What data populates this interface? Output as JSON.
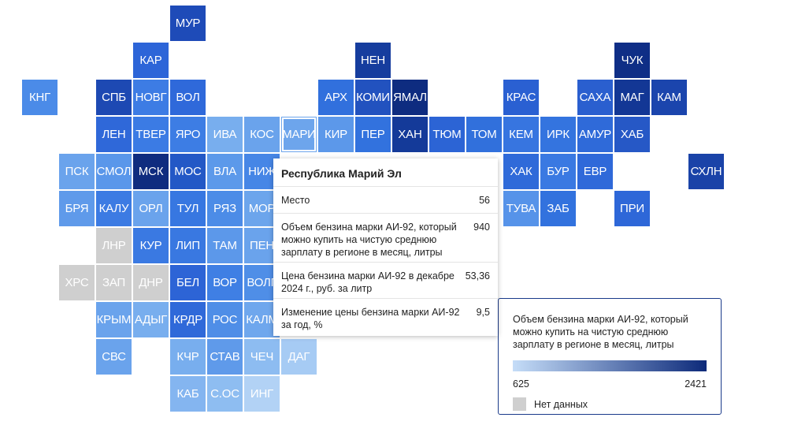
{
  "regions": [
    {
      "code": "МУР",
      "col": 4,
      "row": 0,
      "color": "#1e4bb8"
    },
    {
      "code": "КАР",
      "col": 3,
      "row": 1,
      "color": "#2d65d8"
    },
    {
      "code": "НЕН",
      "col": 9,
      "row": 1,
      "color": "#163d9e"
    },
    {
      "code": "ЧУК",
      "col": 16,
      "row": 1,
      "color": "#0f2e86"
    },
    {
      "code": "КНГ",
      "col": 0,
      "row": 2,
      "color": "#4b8be8"
    },
    {
      "code": "СПБ",
      "col": 2,
      "row": 2,
      "color": "#1d49b3"
    },
    {
      "code": "НОВГ",
      "col": 3,
      "row": 2,
      "color": "#3d7ce4"
    },
    {
      "code": "ВОЛ",
      "col": 4,
      "row": 2,
      "color": "#2f69da"
    },
    {
      "code": "АРХ",
      "col": 8,
      "row": 2,
      "color": "#3170dd"
    },
    {
      "code": "КОМИ",
      "col": 9,
      "row": 2,
      "color": "#2252bf"
    },
    {
      "code": "ЯМАЛ",
      "col": 10,
      "row": 2,
      "color": "#0e2c80"
    },
    {
      "code": "КРАС",
      "col": 13,
      "row": 2,
      "color": "#2a60d2"
    },
    {
      "code": "САХА",
      "col": 15,
      "row": 2,
      "color": "#2a5fcf"
    },
    {
      "code": "МАГ",
      "col": 16,
      "row": 2,
      "color": "#133795"
    },
    {
      "code": "КАМ",
      "col": 17,
      "row": 2,
      "color": "#1b45ad"
    },
    {
      "code": "ЛЕН",
      "col": 2,
      "row": 3,
      "color": "#2f68d9"
    },
    {
      "code": "ТВЕР",
      "col": 3,
      "row": 3,
      "color": "#3b7be4"
    },
    {
      "code": "ЯРО",
      "col": 4,
      "row": 3,
      "color": "#3d7de4"
    },
    {
      "code": "ИВА",
      "col": 5,
      "row": 3,
      "color": "#78aeee"
    },
    {
      "code": "КОС",
      "col": 6,
      "row": 3,
      "color": "#6aa3ec"
    },
    {
      "code": "МАРИ",
      "col": 7,
      "row": 3,
      "color": "#6da5ec"
    },
    {
      "code": "КИР",
      "col": 8,
      "row": 3,
      "color": "#5c98ea"
    },
    {
      "code": "ПЕР",
      "col": 9,
      "row": 3,
      "color": "#3272de"
    },
    {
      "code": "ХАН",
      "col": 10,
      "row": 3,
      "color": "#143a99"
    },
    {
      "code": "ТЮМ",
      "col": 11,
      "row": 3,
      "color": "#2c64d5"
    },
    {
      "code": "ТОМ",
      "col": 12,
      "row": 3,
      "color": "#3170dc"
    },
    {
      "code": "КЕМ",
      "col": 13,
      "row": 3,
      "color": "#3775e0"
    },
    {
      "code": "ИРК",
      "col": 14,
      "row": 3,
      "color": "#3474df"
    },
    {
      "code": "АМУР",
      "col": 15,
      "row": 3,
      "color": "#2f6ad9"
    },
    {
      "code": "ХАБ",
      "col": 16,
      "row": 3,
      "color": "#2658c6"
    },
    {
      "code": "ПСК",
      "col": 1,
      "row": 4,
      "color": "#6aa3ec"
    },
    {
      "code": "СМОЛ",
      "col": 2,
      "row": 4,
      "color": "#5a97ea"
    },
    {
      "code": "МСК",
      "col": 3,
      "row": 4,
      "color": "#0f2c7f"
    },
    {
      "code": "МОС",
      "col": 4,
      "row": 4,
      "color": "#2358c6"
    },
    {
      "code": "ВЛА",
      "col": 5,
      "row": 4,
      "color": "#5c99ea"
    },
    {
      "code": "НИЖ",
      "col": 6,
      "row": 4,
      "color": "#4686e6"
    },
    {
      "code": "ХАК",
      "col": 13,
      "row": 4,
      "color": "#2f6ad9"
    },
    {
      "code": "БУР",
      "col": 14,
      "row": 4,
      "color": "#3a79e2"
    },
    {
      "code": "ЕВР",
      "col": 15,
      "row": 4,
      "color": "#2f69d9"
    },
    {
      "code": "СХЛН",
      "col": 18,
      "row": 4,
      "color": "#1a43a8"
    },
    {
      "code": "БРЯ",
      "col": 1,
      "row": 5,
      "color": "#5f9aea"
    },
    {
      "code": "КАЛУ",
      "col": 2,
      "row": 5,
      "color": "#3c7be3"
    },
    {
      "code": "ОРЛ",
      "col": 3,
      "row": 5,
      "color": "#6aa3ec"
    },
    {
      "code": "ТУЛ",
      "col": 4,
      "row": 5,
      "color": "#3777e1"
    },
    {
      "code": "РЯЗ",
      "col": 5,
      "row": 5,
      "color": "#4c8ce7"
    },
    {
      "code": "МОР",
      "col": 6,
      "row": 5,
      "color": "#6ca5ec"
    },
    {
      "code": "ТУВА",
      "col": 13,
      "row": 5,
      "color": "#5693e9"
    },
    {
      "code": "ЗАБ",
      "col": 14,
      "row": 5,
      "color": "#3272de"
    },
    {
      "code": "ПРИ",
      "col": 16,
      "row": 5,
      "color": "#2e67d8"
    },
    {
      "code": "ЛНР",
      "col": 2,
      "row": 6,
      "color": "#cfcfcf"
    },
    {
      "code": "КУР",
      "col": 3,
      "row": 6,
      "color": "#3a79e2"
    },
    {
      "code": "ЛИП",
      "col": 4,
      "row": 6,
      "color": "#3978e1"
    },
    {
      "code": "ТАМ",
      "col": 5,
      "row": 6,
      "color": "#5c98ea"
    },
    {
      "code": "ПЕН",
      "col": 6,
      "row": 6,
      "color": "#6aa3ec"
    },
    {
      "code": "ХРС",
      "col": 1,
      "row": 7,
      "color": "#cfcfcf"
    },
    {
      "code": "ЗАП",
      "col": 2,
      "row": 7,
      "color": "#cfcfcf"
    },
    {
      "code": "ДНР",
      "col": 3,
      "row": 7,
      "color": "#cfcfcf"
    },
    {
      "code": "БЕЛ",
      "col": 4,
      "row": 7,
      "color": "#2d64d6"
    },
    {
      "code": "ВОР",
      "col": 5,
      "row": 7,
      "color": "#3f7fe4"
    },
    {
      "code": "ВОЛГ",
      "col": 6,
      "row": 7,
      "color": "#4f8ee7"
    },
    {
      "code": "КРЫМ",
      "col": 2,
      "row": 8,
      "color": "#6aa3ec"
    },
    {
      "code": "АДЫГ",
      "col": 3,
      "row": 8,
      "color": "#78aeee"
    },
    {
      "code": "КРДР",
      "col": 4,
      "row": 8,
      "color": "#2f69d9"
    },
    {
      "code": "РОС",
      "col": 5,
      "row": 8,
      "color": "#4f8ee7"
    },
    {
      "code": "КАЛМ",
      "col": 6,
      "row": 8,
      "color": "#6fa7ed"
    },
    {
      "code": "СВС",
      "col": 2,
      "row": 9,
      "color": "#6aa3ec"
    },
    {
      "code": "КЧР",
      "col": 4,
      "row": 9,
      "color": "#78aeee"
    },
    {
      "code": "СТАВ",
      "col": 5,
      "row": 9,
      "color": "#5f9aea"
    },
    {
      "code": "ЧЕЧ",
      "col": 6,
      "row": 9,
      "color": "#8dbcf1"
    },
    {
      "code": "ДАГ",
      "col": 7,
      "row": 9,
      "color": "#a6cbf4"
    },
    {
      "code": "КАБ",
      "col": 4,
      "row": 10,
      "color": "#84b5f0"
    },
    {
      "code": "С.ОС",
      "col": 5,
      "row": 10,
      "color": "#8ebdf1"
    },
    {
      "code": "ИНГ",
      "col": 6,
      "row": 10,
      "color": "#b2d2f5"
    }
  ],
  "hovered_region": "МАРИ",
  "tooltip": {
    "title": "Республика Марий Эл",
    "rows": [
      {
        "label": "Место",
        "value": "56"
      },
      {
        "label": "Объем бензина марки АИ-92, который можно купить на чистую среднюю зарплату в регионе в месяц, литры",
        "value": "940"
      },
      {
        "label": "Цена бензина марки АИ-92 в декабре 2024 г., руб. за литр",
        "value": "53,36"
      },
      {
        "label": "Изменение цены бензина марки АИ-92 за год, %",
        "value": "9,5"
      }
    ]
  },
  "legend": {
    "title": "Объем бензина марки АИ-92, который можно купить на чистую среднюю зарплату в регионе в месяц, литры",
    "min": "625",
    "max": "2421",
    "min_color": "#c5ddf8",
    "max_color": "#0d2a7a",
    "no_data_label": "Нет данных",
    "no_data_color": "#cfcfcf"
  }
}
